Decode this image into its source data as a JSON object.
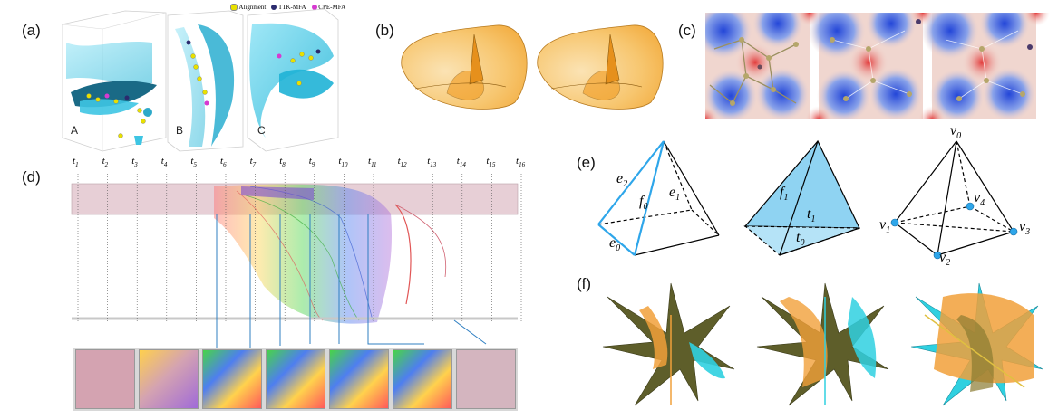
{
  "figure": {
    "panel_labels": [
      "(a)",
      "(b)",
      "(c)",
      "(d)",
      "(e)",
      "(f)"
    ]
  },
  "panel_a": {
    "legend": [
      {
        "label": "Alignment",
        "color": "#e8e000"
      },
      {
        "label": "TTK-MFA",
        "color": "#2b2b6e"
      },
      {
        "label": "CPE-MFA",
        "color": "#d63ad0"
      }
    ],
    "subfig_labels": [
      "A",
      "B",
      "C"
    ]
  },
  "panel_d": {
    "time_labels": [
      {
        "base": "t",
        "sub": "1"
      },
      {
        "base": "t",
        "sub": "2"
      },
      {
        "base": "t",
        "sub": "3"
      },
      {
        "base": "t",
        "sub": "4"
      },
      {
        "base": "t",
        "sub": "5"
      },
      {
        "base": "t",
        "sub": "6"
      },
      {
        "base": "t",
        "sub": "7"
      },
      {
        "base": "t",
        "sub": "8"
      },
      {
        "base": "t",
        "sub": "9"
      },
      {
        "base": "t",
        "sub": "10"
      },
      {
        "base": "t",
        "sub": "11"
      },
      {
        "base": "t",
        "sub": "12"
      },
      {
        "base": "t",
        "sub": "13"
      },
      {
        "base": "t",
        "sub": "14"
      },
      {
        "base": "t",
        "sub": "15"
      },
      {
        "base": "t",
        "sub": "16"
      }
    ]
  },
  "panel_e": {
    "pyramid1": {
      "e2": "e",
      "e2sub": "2",
      "e1": "e",
      "e1sub": "1",
      "f0": "f",
      "f0sub": "0",
      "e0": "e",
      "e0sub": "0"
    },
    "pyramid2": {
      "f1": "f",
      "f1sub": "1",
      "t1": "t",
      "t1sub": "1",
      "t0": "t",
      "t0sub": "0"
    },
    "pyramid3": {
      "v0": "v",
      "v0sub": "0",
      "v1": "v",
      "v1sub": "1",
      "v2": "v",
      "v2sub": "2",
      "v3": "v",
      "v3sub": "3",
      "v4": "v",
      "v4sub": "4"
    }
  }
}
